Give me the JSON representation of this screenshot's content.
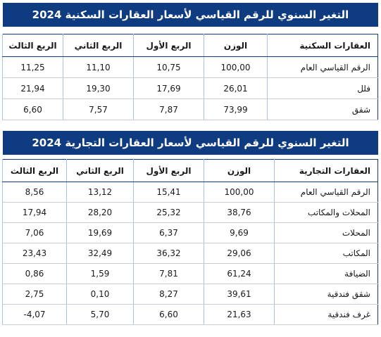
{
  "tables": [
    {
      "title": "التغير السنوي للرقم القياسي لأسعار العقارات السكنية 2024",
      "header": [
        "العقارات السكنية",
        "الوزن",
        "الربع الأول",
        "الربع الثاني",
        "الربع الثالث"
      ],
      "rows": [
        [
          "الرقم القياسي العام",
          "100,00",
          "10,75",
          "11,10",
          "11,25"
        ],
        [
          "فلل",
          "26,01",
          "17,69",
          "19,30",
          "21,94"
        ],
        [
          "شقق",
          "73,99",
          "7,87",
          "7,57",
          "6,60"
        ]
      ]
    },
    {
      "title": "التغير السنوي للرقم القياسي لأسعار العقارات التجارية 2024",
      "header": [
        "العقارات التجارية",
        "الوزن",
        "الربع الأول",
        "الربع الثاني",
        "الربع الثالث"
      ],
      "rows": [
        [
          "الرقم القياسي العام",
          "100,00",
          "15,41",
          "13,12",
          "8,56"
        ],
        [
          "المحلات والمكاتب",
          "38,76",
          "25,32",
          "28,20",
          "17,94"
        ],
        [
          "المحلات",
          "9,69",
          "6,37",
          "19,69",
          "7,06"
        ],
        [
          "المكاتب",
          "29,06",
          "36,32",
          "32,49",
          "23,43"
        ],
        [
          "الضيافة",
          "61,24",
          "7,81",
          "1,59",
          "0,86"
        ],
        [
          "شقق فندقية",
          "39,61",
          "8,27",
          "0,10",
          "2,75"
        ],
        [
          "غرف فندقية",
          "21,63",
          "6,60",
          "5,70",
          "4,07-"
        ]
      ]
    }
  ]
}
